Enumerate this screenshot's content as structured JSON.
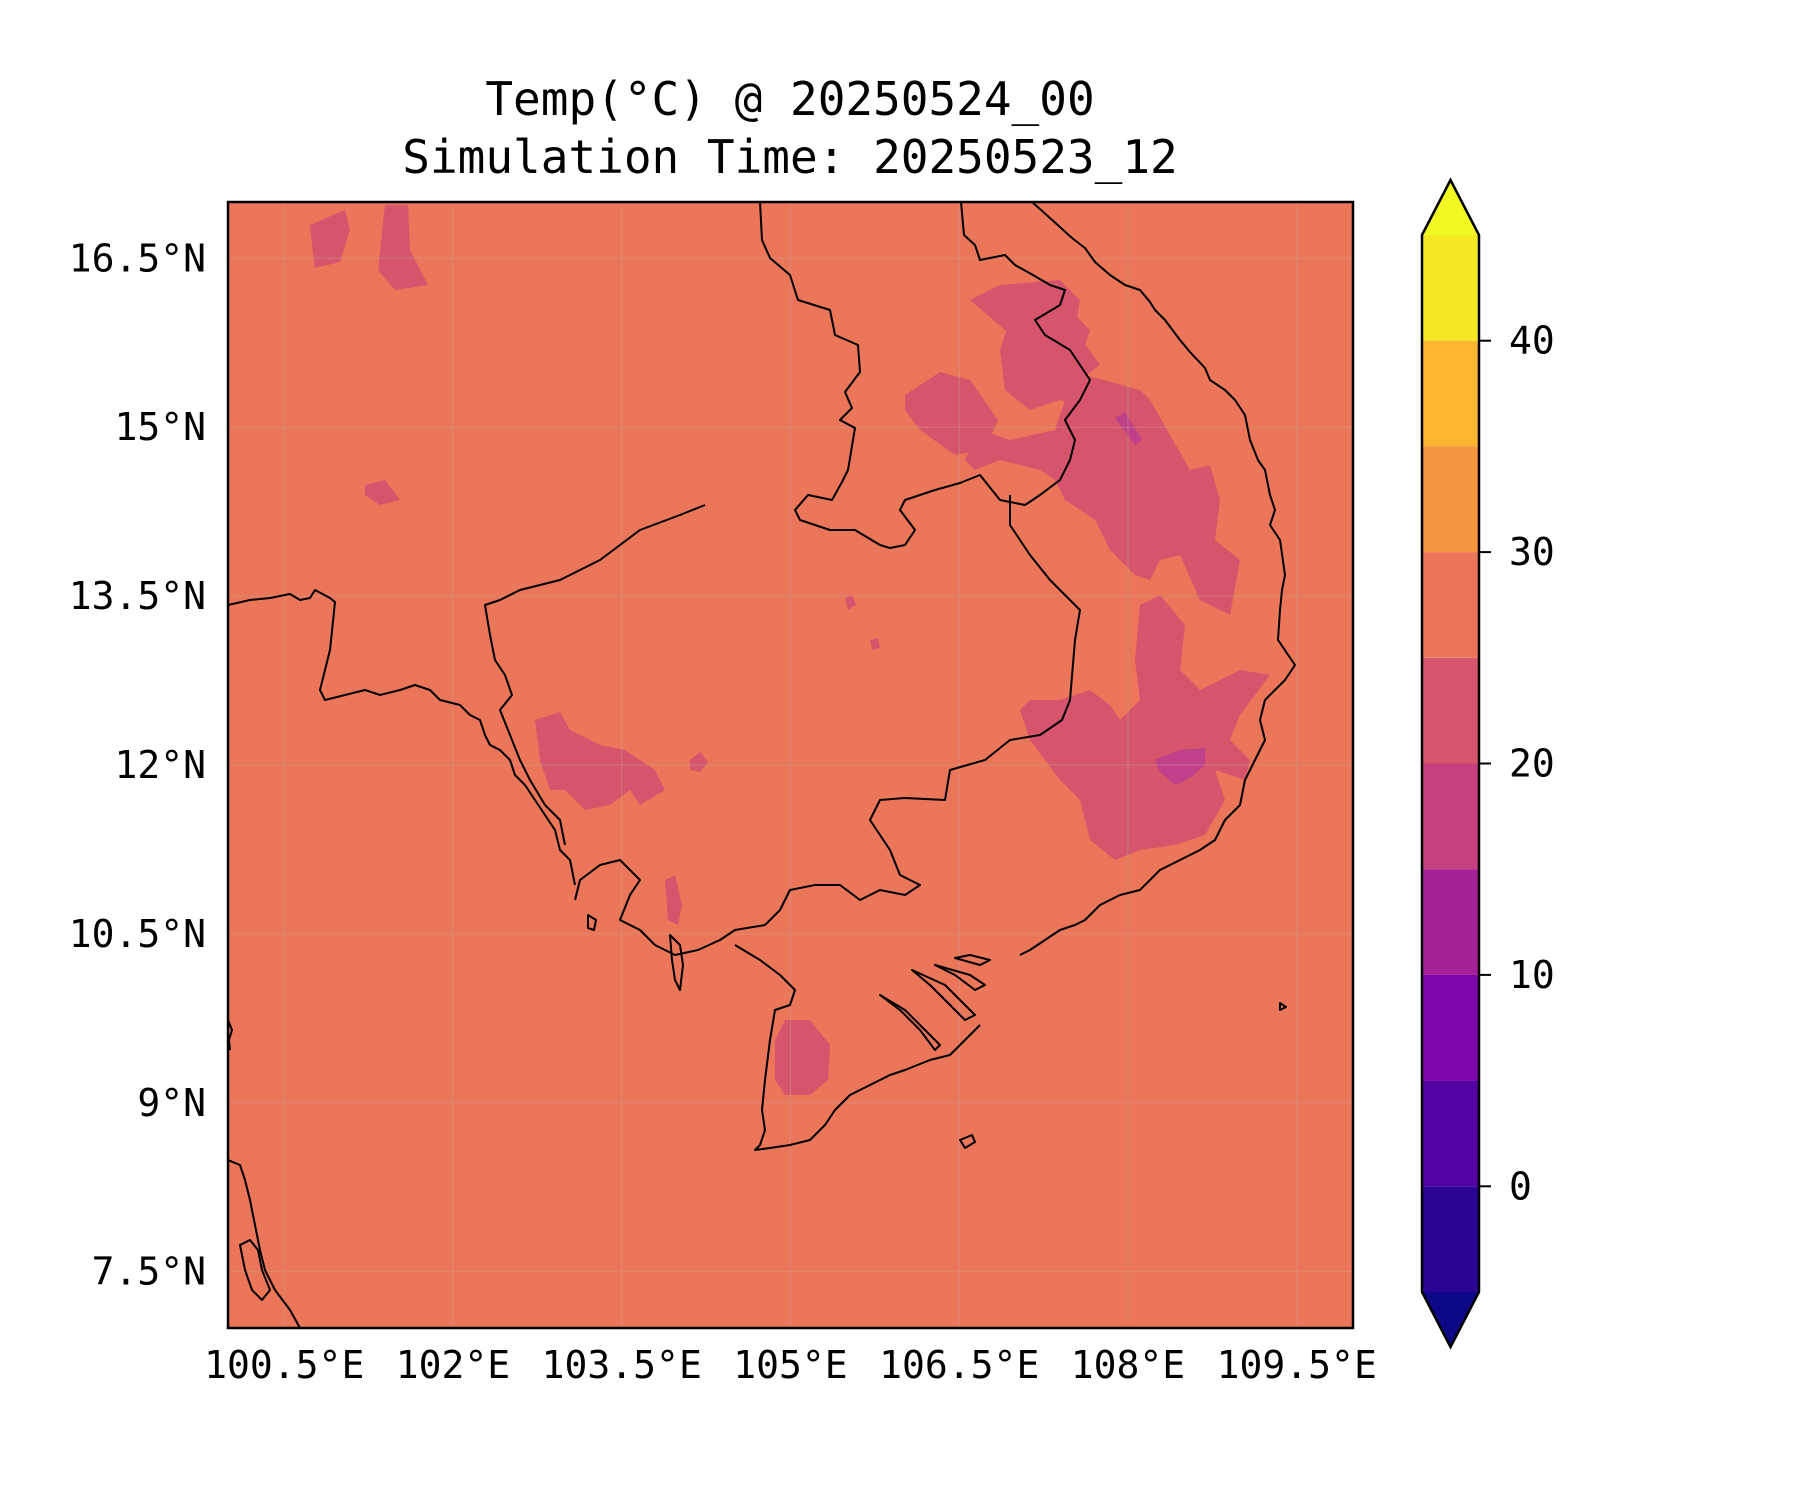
{
  "title": {
    "line1": "Temp(°C) @ 20250524_00",
    "line2": "Simulation Time: 20250523_12"
  },
  "map": {
    "projection": "PlateCarree",
    "lon_range": [
      100.0,
      110.0
    ],
    "lat_range": [
      7.0,
      17.0
    ],
    "background_fill_band": "25-30",
    "background_color": "#eb7659",
    "cool_patch_color": "#d6556c",
    "coldest_patch_color": "#c0408a",
    "coastline_color": "#000000",
    "gridlines": true
  },
  "axes": {
    "x_ticks": [
      "100.5°E",
      "102°E",
      "103.5°E",
      "105°E",
      "106.5°E",
      "108°E",
      "109.5°E"
    ],
    "y_ticks": [
      "16.5°N",
      "15°N",
      "13.5°N",
      "12°N",
      "10.5°N",
      "9°N",
      "7.5°N"
    ]
  },
  "colorbar": {
    "extend": "both",
    "levels": [
      -5,
      0,
      5,
      10,
      15,
      20,
      25,
      30,
      35,
      40,
      45
    ],
    "colors": [
      "#0d0887",
      "#2a0593",
      "#5302a3",
      "#7e03a8",
      "#a62098",
      "#c5407e",
      "#d6556c",
      "#eb7659",
      "#f6953f",
      "#fdb42f",
      "#f4e822",
      "#f0f921"
    ],
    "tick_labels": [
      "0",
      "10",
      "20",
      "30",
      "40"
    ],
    "tick_values": [
      0,
      10,
      20,
      30,
      40
    ]
  }
}
